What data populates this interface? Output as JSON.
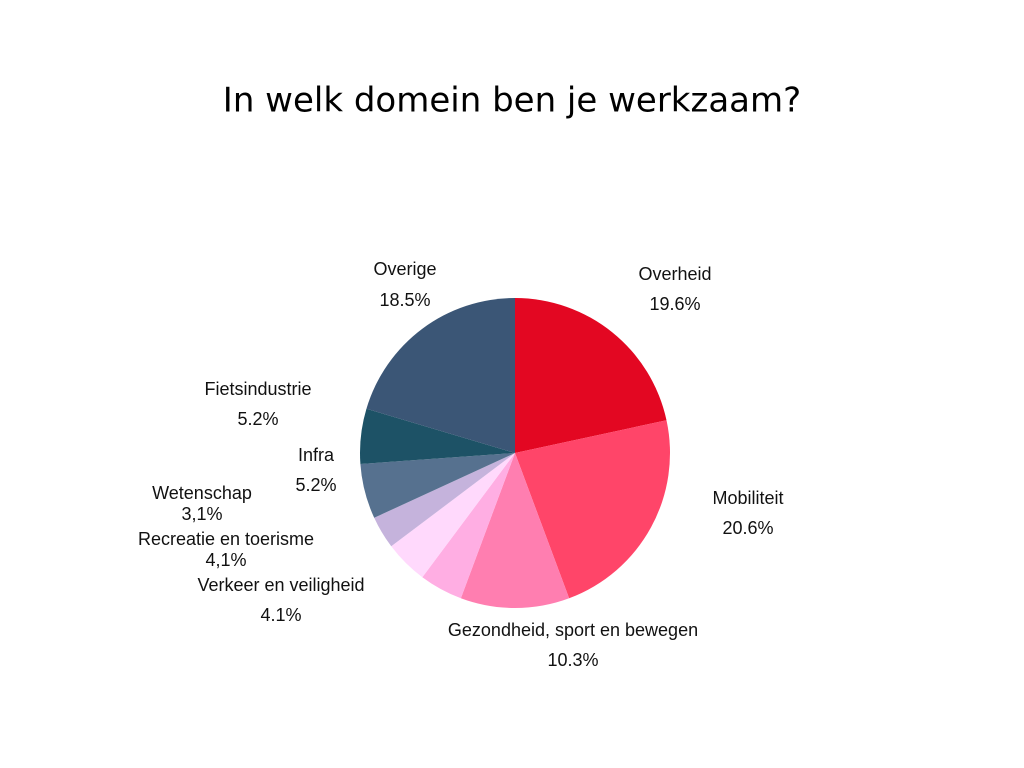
{
  "chart_data": {
    "type": "pie",
    "title": "In welk domein ben je werkzaam?",
    "categories": [
      "Overheid",
      "Mobiliteit",
      "Gezondheid, sport en bewegen",
      "Verkeer en veiligheid",
      "Recreatie en toerisme",
      "Wetenschap",
      "Infra",
      "Fietsindustrie",
      "Overige"
    ],
    "values": [
      19.6,
      20.6,
      10.3,
      4.1,
      4.1,
      3.1,
      5.2,
      5.2,
      18.5
    ],
    "value_labels": [
      "19.6%",
      "20.6%",
      "10.3%",
      "4.1%",
      "4,1%",
      "3,1%",
      "5.2%",
      "5.2%",
      "18.5%"
    ],
    "colors": [
      "#e30722",
      "#ff4569",
      "#ff7eb0",
      "#ffaee3",
      "#ffd9fc",
      "#c5b3dc",
      "#56718f",
      "#1d5266",
      "#3b5676"
    ]
  }
}
